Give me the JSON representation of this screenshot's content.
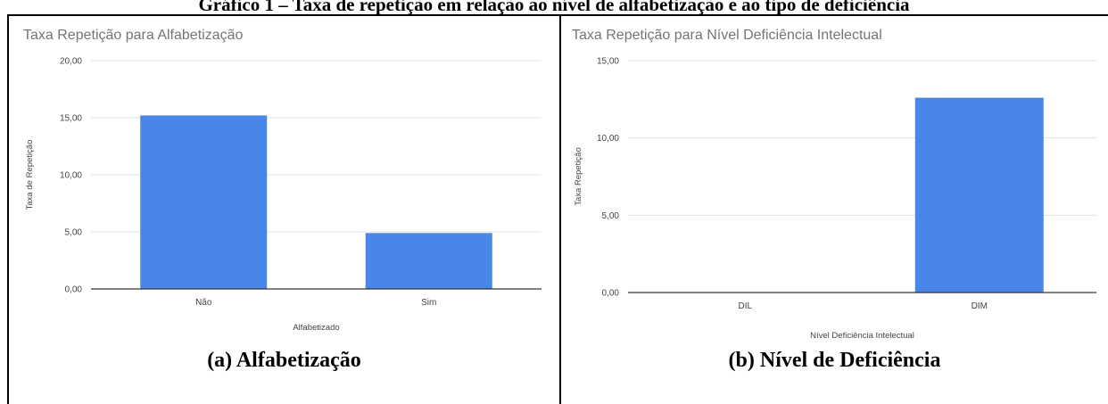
{
  "figure_title": "Gráfico 1 – Taxa de repetição em relação ao nível de alfabetização e ao tipo de deficiência",
  "panels": [
    {
      "caption": "(a)  Alfabetização"
    },
    {
      "caption": "(b)  Nível de Deficiência"
    }
  ],
  "colors": {
    "bar": "#4a86e8",
    "grid": "#e0e0e0",
    "axis": "#333333"
  },
  "chart_data": [
    {
      "type": "bar",
      "title": "Taxa Repetição para Alfabetização",
      "xlabel": "Alfabetizado",
      "ylabel": "Taxa de Repetição",
      "categories": [
        "Não",
        "Sim"
      ],
      "values": [
        15.2,
        4.9
      ],
      "ylim": [
        0,
        20
      ],
      "yticks": [
        "0,00",
        "5,00",
        "10,00",
        "15,00",
        "20,00"
      ],
      "grid": true
    },
    {
      "type": "bar",
      "title": "Taxa Repetição para  Nível Deficiência Intelectual",
      "xlabel": "Nível Deficiência Intelectual",
      "ylabel": "Taxa Repetição",
      "categories": [
        "DIL",
        "DIM"
      ],
      "values": [
        0,
        12.6
      ],
      "ylim": [
        0,
        15
      ],
      "yticks": [
        "0,00",
        "5,00",
        "10,00",
        "15,00"
      ],
      "grid": true
    }
  ]
}
